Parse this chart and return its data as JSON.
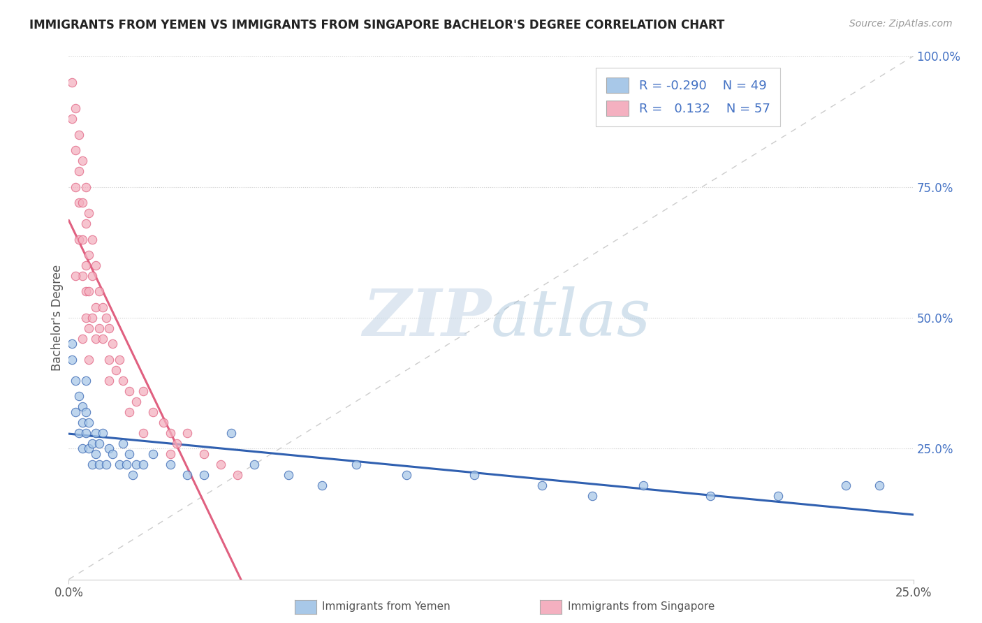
{
  "title": "IMMIGRANTS FROM YEMEN VS IMMIGRANTS FROM SINGAPORE BACHELOR'S DEGREE CORRELATION CHART",
  "source": "Source: ZipAtlas.com",
  "ylabel": "Bachelor's Degree",
  "xlim": [
    0.0,
    0.25
  ],
  "ylim": [
    0.0,
    1.0
  ],
  "xticklabels": [
    "0.0%",
    "25.0%"
  ],
  "yticklabels_right": [
    "25.0%",
    "50.0%",
    "75.0%",
    "100.0%"
  ],
  "ytick_values": [
    0.25,
    0.5,
    0.75,
    1.0
  ],
  "xtick_values": [
    0.0,
    0.25
  ],
  "color_yemen": "#a8c8e8",
  "color_singapore": "#f4b0c0",
  "trendline_yemen_color": "#3060b0",
  "trendline_singapore_color": "#e06080",
  "watermark_zip": "ZIP",
  "watermark_atlas": "atlas",
  "yemen_x": [
    0.001,
    0.002,
    0.002,
    0.003,
    0.003,
    0.004,
    0.004,
    0.004,
    0.005,
    0.005,
    0.005,
    0.006,
    0.006,
    0.007,
    0.007,
    0.008,
    0.008,
    0.009,
    0.009,
    0.01,
    0.011,
    0.012,
    0.013,
    0.015,
    0.016,
    0.017,
    0.018,
    0.019,
    0.02,
    0.022,
    0.025,
    0.03,
    0.035,
    0.04,
    0.048,
    0.055,
    0.065,
    0.075,
    0.085,
    0.1,
    0.12,
    0.14,
    0.155,
    0.17,
    0.19,
    0.21,
    0.23,
    0.24,
    0.001
  ],
  "yemen_y": [
    0.42,
    0.38,
    0.32,
    0.35,
    0.28,
    0.3,
    0.33,
    0.25,
    0.28,
    0.32,
    0.38,
    0.25,
    0.3,
    0.26,
    0.22,
    0.24,
    0.28,
    0.22,
    0.26,
    0.28,
    0.22,
    0.25,
    0.24,
    0.22,
    0.26,
    0.22,
    0.24,
    0.2,
    0.22,
    0.22,
    0.24,
    0.22,
    0.2,
    0.2,
    0.28,
    0.22,
    0.2,
    0.18,
    0.22,
    0.2,
    0.2,
    0.18,
    0.16,
    0.18,
    0.16,
    0.16,
    0.18,
    0.18,
    0.45
  ],
  "singapore_x": [
    0.001,
    0.001,
    0.002,
    0.002,
    0.002,
    0.003,
    0.003,
    0.003,
    0.003,
    0.004,
    0.004,
    0.004,
    0.004,
    0.005,
    0.005,
    0.005,
    0.005,
    0.005,
    0.006,
    0.006,
    0.006,
    0.006,
    0.007,
    0.007,
    0.007,
    0.008,
    0.008,
    0.008,
    0.009,
    0.009,
    0.01,
    0.01,
    0.011,
    0.012,
    0.012,
    0.013,
    0.014,
    0.015,
    0.016,
    0.018,
    0.02,
    0.022,
    0.025,
    0.028,
    0.03,
    0.032,
    0.035,
    0.04,
    0.045,
    0.05,
    0.002,
    0.004,
    0.006,
    0.012,
    0.018,
    0.022,
    0.03
  ],
  "singapore_y": [
    0.95,
    0.88,
    0.9,
    0.82,
    0.75,
    0.85,
    0.78,
    0.72,
    0.65,
    0.8,
    0.72,
    0.65,
    0.58,
    0.75,
    0.68,
    0.6,
    0.55,
    0.5,
    0.7,
    0.62,
    0.55,
    0.48,
    0.65,
    0.58,
    0.5,
    0.6,
    0.52,
    0.46,
    0.55,
    0.48,
    0.52,
    0.46,
    0.5,
    0.48,
    0.42,
    0.45,
    0.4,
    0.42,
    0.38,
    0.36,
    0.34,
    0.36,
    0.32,
    0.3,
    0.28,
    0.26,
    0.28,
    0.24,
    0.22,
    0.2,
    0.58,
    0.46,
    0.42,
    0.38,
    0.32,
    0.28,
    0.24
  ],
  "diag_line_x": [
    0.0,
    0.25
  ],
  "diag_line_y": [
    0.0,
    1.0
  ]
}
